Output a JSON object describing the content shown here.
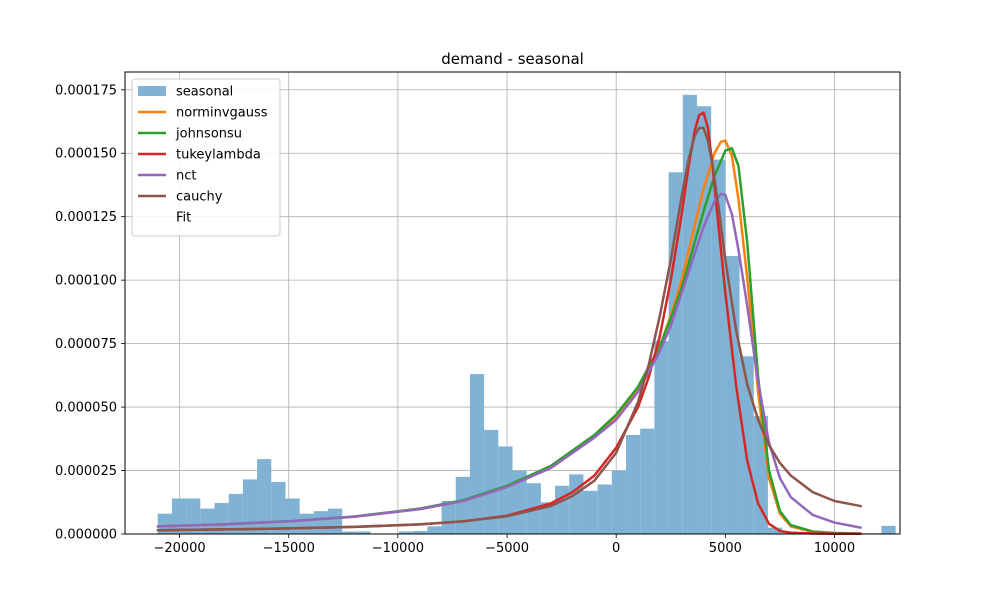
{
  "chart_data": {
    "type": "histogram",
    "title": "demand - seasonal",
    "xlabel": "",
    "ylabel": "",
    "xlim": [
      -22500,
      13000
    ],
    "ylim": [
      0,
      0.000182
    ],
    "grid": true,
    "legend_position": "top-left",
    "x_ticks": [
      -20000,
      -15000,
      -10000,
      -5000,
      0,
      5000,
      10000
    ],
    "x_tick_labels": [
      "−20000",
      "−15000",
      "−10000",
      "−5000",
      "0",
      "5000",
      "10000"
    ],
    "y_ticks": [
      0,
      2.5e-05,
      5e-05,
      7.5e-05,
      0.0001,
      0.000125,
      0.00015,
      0.000175
    ],
    "y_tick_labels": [
      "0.000000",
      "0.000025",
      "0.000050",
      "0.000075",
      "0.000100",
      "0.000125",
      "0.000150",
      "0.000175"
    ],
    "histogram": {
      "name": "seasonal",
      "color": "#7fb2d5",
      "bin_start": -21000,
      "bin_width": 650,
      "densities": [
        8e-06,
        1.4e-05,
        1.4e-05,
        1e-05,
        1.22e-05,
        1.58e-05,
        2.15e-05,
        2.95e-05,
        2.05e-05,
        1.4e-05,
        8e-06,
        9e-06,
        1e-05,
        1e-06,
        1e-06,
        2e-07,
        2e-07,
        1e-06,
        1.2e-06,
        3e-06,
        1.3e-05,
        2.25e-05,
        6.3e-05,
        4.1e-05,
        3.45e-05,
        2.5e-05,
        2e-05,
        1.25e-05,
        1.9e-05,
        2.35e-05,
        1.7e-05,
        1.95e-05,
        2.5e-05,
        3.9e-05,
        4.15e-05,
        7.6e-05,
        0.0001425,
        0.000173,
        0.0001685,
        0.0001475,
        0.0001095,
        7e-05,
        4.65e-05,
        2.5e-06,
        1e-06,
        3e-07,
        3e-07,
        3e-07,
        3e-07,
        3e-07,
        3e-07,
        3.2e-06
      ]
    },
    "series": [
      {
        "name": "norminvgauss",
        "color": "#ff7f0e",
        "x": [
          -21000,
          -18000,
          -15000,
          -12000,
          -9000,
          -7000,
          -5000,
          -3000,
          -1000,
          0,
          1000,
          2000,
          2500,
          3000,
          3500,
          4000,
          4500,
          4800,
          5000,
          5300,
          5600,
          6000,
          6500,
          7000,
          7500,
          8000,
          9000,
          10000,
          11200
        ],
        "y": [
          3e-06,
          3.8e-06,
          5e-06,
          6.8e-06,
          9.8e-06,
          1.3e-05,
          1.85e-05,
          2.6e-05,
          3.8e-05,
          4.6e-05,
          5.7e-05,
          7.4e-05,
          8.6e-05,
          0.0001,
          0.000118,
          0.000136,
          0.00015,
          0.0001545,
          0.000155,
          0.000149,
          0.000132,
          0.000101,
          5.6e-05,
          2.2e-05,
          8e-06,
          3e-06,
          8e-07,
          3e-07,
          1e-07
        ]
      },
      {
        "name": "johnsonsu",
        "color": "#2ca02c",
        "x": [
          -21000,
          -18000,
          -15000,
          -12000,
          -9000,
          -7000,
          -5000,
          -3000,
          -1000,
          0,
          1000,
          2000,
          2500,
          3000,
          3500,
          4000,
          4500,
          5000,
          5300,
          5600,
          6000,
          6500,
          7000,
          7500,
          8000,
          9000,
          10000,
          11200
        ],
        "y": [
          3e-06,
          3.8e-06,
          5e-06,
          6.9e-06,
          1e-05,
          1.33e-05,
          1.9e-05,
          2.68e-05,
          3.9e-05,
          4.7e-05,
          5.8e-05,
          7.4e-05,
          8.5e-05,
          9.7e-05,
          0.000112,
          0.000127,
          0.000141,
          0.000151,
          0.000152,
          0.000145,
          0.000115,
          6.2e-05,
          2.5e-05,
          9e-06,
          3.5e-06,
          1e-06,
          4e-07,
          2e-07
        ]
      },
      {
        "name": "tukeylambda",
        "color": "#d62728",
        "x": [
          -21000,
          -18000,
          -15000,
          -12000,
          -9000,
          -7000,
          -5000,
          -3000,
          -2000,
          -1000,
          0,
          1000,
          1500,
          2000,
          2500,
          3000,
          3300,
          3600,
          3800,
          4000,
          4200,
          4400,
          4700,
          5000,
          5500,
          6000,
          6500,
          7000,
          7500,
          8000,
          9000,
          10000,
          11200
        ],
        "y": [
          1.5e-06,
          1.8e-06,
          2.2e-06,
          2.8e-06,
          3.8e-06,
          5e-06,
          7.2e-06,
          1.2e-05,
          1.65e-05,
          2.3e-05,
          3.4e-05,
          5e-05,
          6.2e-05,
          7.8e-05,
          0.0001,
          0.000126,
          0.000144,
          0.000159,
          0.000165,
          0.000166,
          0.00016,
          0.000146,
          0.00012,
          9.5e-05,
          5.8e-05,
          2.9e-05,
          1.2e-05,
          4e-06,
          1.2e-06,
          5e-07,
          2e-07,
          1e-07,
          1e-07
        ]
      },
      {
        "name": "nct",
        "color": "#9467bd",
        "x": [
          -21000,
          -18000,
          -15000,
          -12000,
          -9000,
          -7000,
          -5000,
          -3000,
          -1000,
          0,
          1000,
          2000,
          2500,
          3000,
          3500,
          4000,
          4500,
          4800,
          5000,
          5300,
          5600,
          6000,
          6500,
          7000,
          7500,
          8000,
          9000,
          10000,
          11200
        ],
        "y": [
          3e-06,
          3.8e-06,
          5e-06,
          6.8e-06,
          9.8e-06,
          1.3e-05,
          1.85e-05,
          2.6e-05,
          3.8e-05,
          4.5e-05,
          5.6e-05,
          7.2e-05,
          8.2e-05,
          9.5e-05,
          0.000108,
          0.000121,
          0.000131,
          0.000134,
          0.0001335,
          0.000126,
          0.000112,
          9e-05,
          6e-05,
          3.6e-05,
          2.2e-05,
          1.45e-05,
          7.5e-06,
          4.5e-06,
          2.5e-06
        ]
      },
      {
        "name": "cauchy",
        "color": "#8c564b",
        "x": [
          -21000,
          -18000,
          -15000,
          -12000,
          -9000,
          -7000,
          -5000,
          -3000,
          -2000,
          -1000,
          0,
          1000,
          1500,
          2000,
          2500,
          3000,
          3300,
          3600,
          3800,
          4000,
          4200,
          4400,
          4700,
          5000,
          5500,
          6000,
          6500,
          7000,
          7500,
          8000,
          9000,
          10000,
          11200
        ],
        "y": [
          1.5e-06,
          1.8e-06,
          2.2e-06,
          2.8e-06,
          3.8e-06,
          5e-06,
          7e-06,
          1.1e-05,
          1.5e-05,
          2.1e-05,
          3.2e-05,
          5.2e-05,
          6.7e-05,
          8.6e-05,
          0.000108,
          0.000133,
          0.000147,
          0.000157,
          0.00016,
          0.00016,
          0.000155,
          0.000146,
          0.000128,
          0.000108,
          8e-05,
          5.9e-05,
          4.5e-05,
          3.5e-05,
          2.8e-05,
          2.3e-05,
          1.65e-05,
          1.3e-05,
          1.1e-05
        ]
      }
    ],
    "legend": [
      {
        "label": "seasonal",
        "kind": "patch",
        "color": "#7fb2d5"
      },
      {
        "label": "norminvgauss",
        "kind": "line",
        "color": "#ff7f0e"
      },
      {
        "label": "johnsonsu",
        "kind": "line",
        "color": "#2ca02c"
      },
      {
        "label": "tukeylambda",
        "kind": "line",
        "color": "#d62728"
      },
      {
        "label": "nct",
        "kind": "line",
        "color": "#9467bd"
      },
      {
        "label": "cauchy",
        "kind": "line",
        "color": "#8c564b"
      },
      {
        "label": "Fit",
        "kind": "none",
        "color": ""
      }
    ]
  }
}
